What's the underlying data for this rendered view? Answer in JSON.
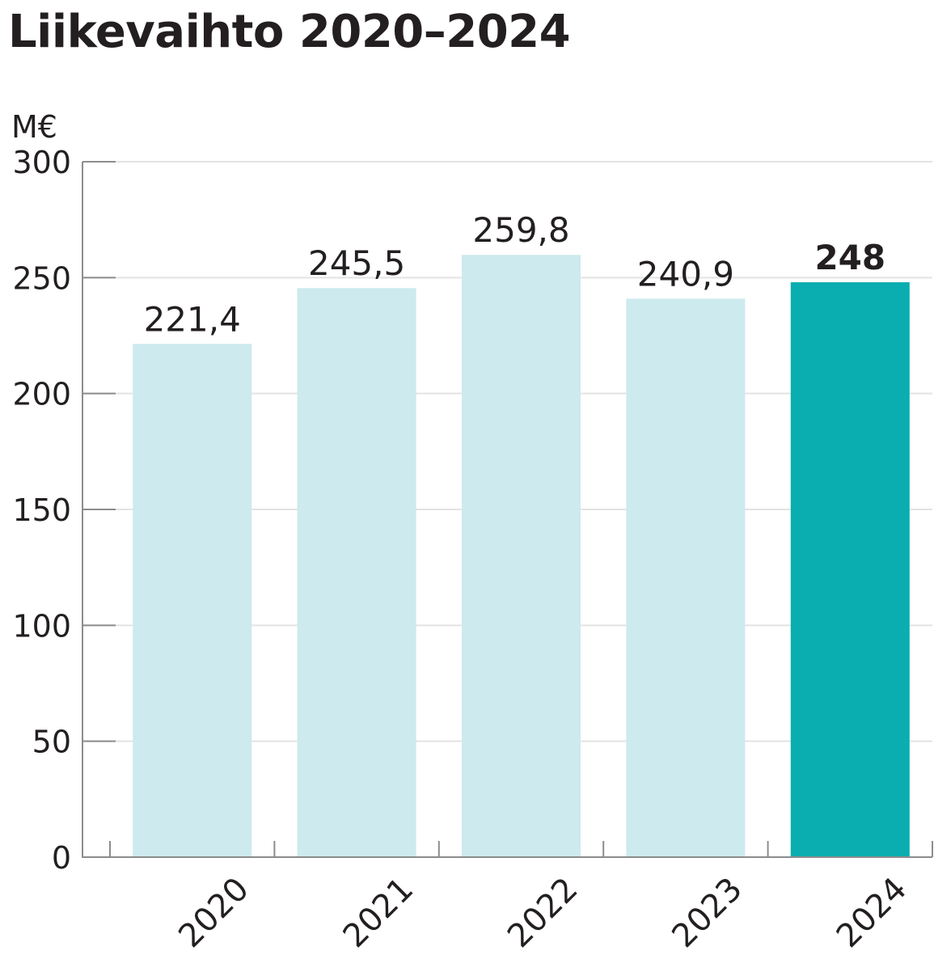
{
  "chart_data": {
    "type": "bar",
    "title": "Liikevaihto 2020–2024",
    "ylabel": "M€",
    "xlabel": "",
    "categories": [
      "2020",
      "2021",
      "2022",
      "2023",
      "2024"
    ],
    "values": [
      221.4,
      245.5,
      259.8,
      240.9,
      248
    ],
    "value_labels": [
      "221,4",
      "245,5",
      "259,8",
      "240,9",
      "248"
    ],
    "highlight_index": 4,
    "ylim": [
      0,
      300
    ],
    "yticks": [
      0,
      50,
      100,
      150,
      200,
      250,
      300
    ],
    "grid": true,
    "legend": "none",
    "colors": {
      "bar": "#cdeaee",
      "highlight": "#0aaeb0",
      "grid": "#e3e3e3",
      "axis": "#8c8c8c",
      "text": "#231f20"
    }
  }
}
